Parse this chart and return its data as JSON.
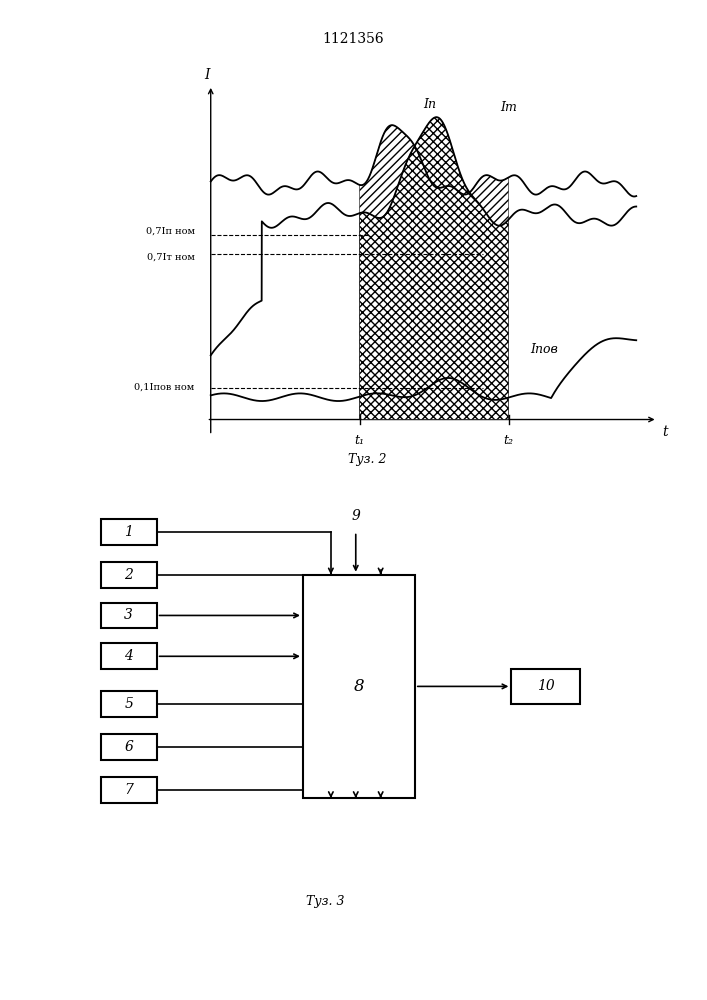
{
  "title": "1121356",
  "fig2_caption": "Τуз. 2",
  "fig3_caption": "Τуз. 3",
  "background_color": "#ffffff",
  "label_07In": "0,7Iп ном",
  "label_07It": "0,7Iт ном",
  "label_01Ipov": "0,1Iпов ном",
  "label_In": "Iп",
  "label_It": "Iт",
  "label_Ipov": "Iпов",
  "label_I": "I",
  "label_t": "t",
  "label_t1": "t₁",
  "label_t2": "t₂"
}
